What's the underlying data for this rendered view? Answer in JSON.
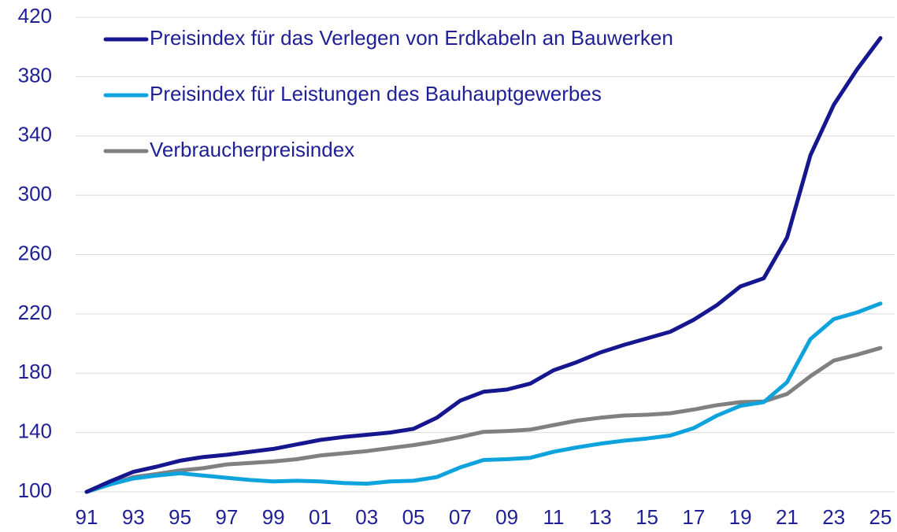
{
  "chart_data": {
    "type": "line",
    "categories": [
      "91",
      null,
      "93",
      null,
      "95",
      null,
      "97",
      null,
      "99",
      null,
      "01",
      null,
      "03",
      null,
      "05",
      null,
      "07",
      null,
      "09",
      null,
      "11",
      null,
      "13",
      null,
      "15",
      null,
      "17",
      null,
      "19",
      null,
      "21",
      null,
      "23",
      null,
      "25"
    ],
    "series": [
      {
        "name": "Preisindex für das Verlegen von Erdkabeln an Bauwerken",
        "color": "#16168f",
        "values": [
          100,
          107,
          113.5,
          117,
          121,
          123.5,
          125,
          127,
          129,
          132,
          135,
          137,
          138.5,
          140,
          142.5,
          150,
          161.5,
          167.5,
          169,
          173,
          182,
          187.5,
          194,
          199,
          203.5,
          208,
          216,
          226,
          238.5,
          244,
          271.5,
          327,
          361,
          385,
          406
        ]
      },
      {
        "name": "Preisindex für Leistungen des Bauhauptgewerbes",
        "color": "#0ea3dc",
        "values": [
          100,
          105,
          109,
          111,
          112.5,
          111,
          109.5,
          108,
          107,
          107.5,
          107,
          106,
          105.5,
          107,
          107.5,
          110,
          116.5,
          121.5,
          122,
          123,
          127,
          130,
          132.5,
          134.5,
          136,
          138,
          143,
          151.5,
          158,
          160.5,
          174,
          203,
          216.5,
          221,
          227
        ]
      },
      {
        "name": "Verbraucherpreisindex",
        "color": "#808080",
        "values": [
          100,
          105,
          110,
          112,
          114.5,
          116,
          118.5,
          119.5,
          120.5,
          122,
          124.5,
          126,
          127.5,
          129.5,
          131.5,
          134,
          137,
          140.5,
          141,
          142,
          145,
          148,
          150,
          151.5,
          152,
          153,
          155.5,
          158.5,
          160.5,
          161,
          166,
          178,
          188.5,
          192.5,
          197
        ]
      }
    ],
    "ylim": [
      100,
      420
    ],
    "yticks": [
      100,
      140,
      180,
      220,
      260,
      300,
      340,
      380,
      420
    ],
    "grid": true,
    "legend": "top-left"
  }
}
